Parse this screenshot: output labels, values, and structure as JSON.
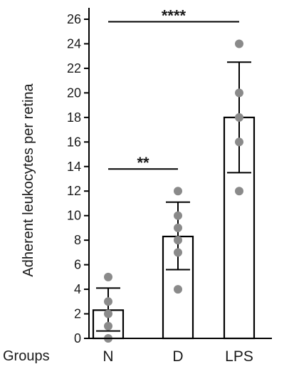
{
  "chart_data": {
    "type": "bar",
    "title": "",
    "xlabel": "Groups",
    "ylabel": "Adherent leukocytes per retina",
    "ylim": [
      0,
      26
    ],
    "yticks": [
      0,
      2,
      4,
      6,
      8,
      10,
      12,
      14,
      16,
      18,
      20,
      22,
      24,
      26
    ],
    "categories": [
      "N",
      "D",
      "LPS"
    ],
    "series": [
      {
        "name": "",
        "values": [
          2.3,
          8.3,
          18.0
        ],
        "error_upper": [
          4.1,
          11.1,
          22.5
        ],
        "error_lower": [
          0.6,
          5.6,
          13.5
        ],
        "points": [
          [
            0,
            1,
            2,
            3,
            5
          ],
          [
            4,
            7,
            8,
            9,
            10,
            12
          ],
          [
            12,
            16,
            18,
            20,
            24
          ]
        ]
      }
    ],
    "significance": [
      {
        "from": "N",
        "to": "LPS",
        "label": "****",
        "y": 25.8
      },
      {
        "from": "N",
        "to": "D",
        "label": "**",
        "y": 13.8
      }
    ],
    "colors": {
      "bar_fill": "#ffffff",
      "bar_stroke": "#000000",
      "points": "#8a8a8a"
    },
    "grid": false,
    "legend": "none"
  }
}
